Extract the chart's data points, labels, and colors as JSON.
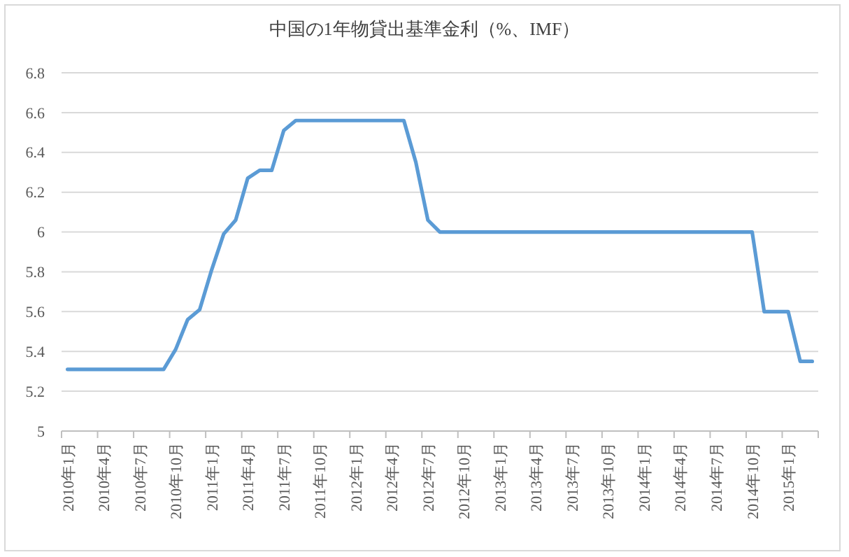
{
  "chart_data": {
    "type": "line",
    "title": "中国の1年物貸出基準金利（%、IMF）",
    "categories": [
      "2010年1月",
      null,
      null,
      "2010年4月",
      null,
      null,
      "2010年7月",
      null,
      null,
      "2010年10月",
      null,
      null,
      "2011年1月",
      null,
      null,
      "2011年4月",
      null,
      null,
      "2011年7月",
      null,
      null,
      "2011年10月",
      null,
      null,
      "2012年1月",
      null,
      null,
      "2012年4月",
      null,
      null,
      "2012年7月",
      null,
      null,
      "2012年10月",
      null,
      null,
      "2013年1月",
      null,
      null,
      "2013年4月",
      null,
      null,
      "2013年7月",
      null,
      null,
      "2013年10月",
      null,
      null,
      "2014年1月",
      null,
      null,
      "2014年4月",
      null,
      null,
      "2014年7月",
      null,
      null,
      "2014年10月",
      null,
      null,
      "2015年1月",
      null,
      null
    ],
    "series": [
      {
        "color": "#5b9bd5",
        "values": [
          5.31,
          5.31,
          5.31,
          5.31,
          5.31,
          5.31,
          5.31,
          5.31,
          5.31,
          5.41,
          5.56,
          5.61,
          5.81,
          5.99,
          6.06,
          6.27,
          6.31,
          6.31,
          6.51,
          6.56,
          6.56,
          6.56,
          6.56,
          6.56,
          6.56,
          6.56,
          6.56,
          6.56,
          6.56,
          6.35,
          6.06,
          6,
          6,
          6,
          6,
          6,
          6,
          6,
          6,
          6,
          6,
          6,
          6,
          6,
          6,
          6,
          6,
          6,
          6,
          6,
          6,
          6,
          6,
          6,
          6,
          6,
          6,
          6,
          5.6,
          5.6,
          5.6,
          5.35,
          5.35
        ]
      }
    ],
    "ylim": [
      5,
      6.8
    ],
    "yticks": [
      5,
      5.2,
      5.4,
      5.6,
      5.8,
      6,
      6.2,
      6.4,
      6.6,
      6.8
    ],
    "grid": "y",
    "marker": "none",
    "line_style": "solid"
  }
}
